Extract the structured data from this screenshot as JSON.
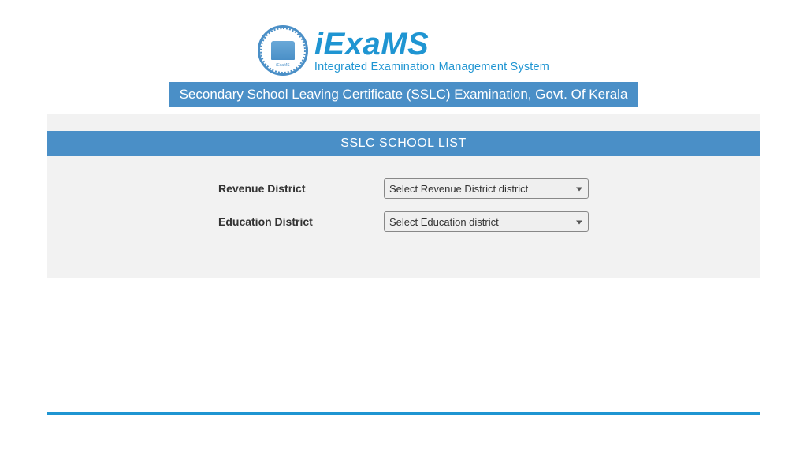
{
  "brand": {
    "title": "iExaMS",
    "subtitle": "Integrated Examination Management System",
    "logo_label": "iExaMS"
  },
  "banner": "Secondary School Leaving Certificate (SSLC) Examination, Govt. Of Kerala",
  "section_title": "SSLC SCHOOL LIST",
  "form": {
    "revenue_label": "Revenue District",
    "revenue_selected": "Select Revenue District district",
    "education_label": "Education District",
    "education_selected": "Select Education district"
  },
  "colors": {
    "primary": "#4a8fc7",
    "accent": "#1f95d2",
    "page_bg": "#f2f2f2",
    "text": "#333333",
    "select_bg": "#efefef",
    "select_border": "#888888"
  }
}
